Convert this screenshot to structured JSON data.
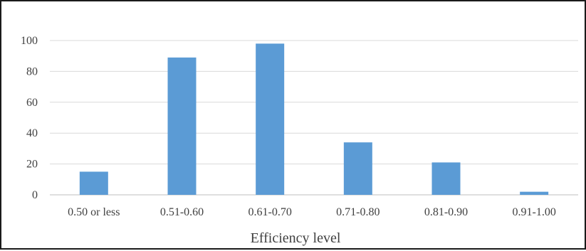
{
  "chart_data": {
    "type": "bar",
    "title": "",
    "xlabel": "Efficiency level",
    "ylabel": "",
    "categories": [
      "0.50 or less",
      "0.51-0.60",
      "0.61-0.70",
      "0.71-0.80",
      "0.81-0.90",
      "0.91-1.00"
    ],
    "values": [
      15,
      89,
      98,
      34,
      21,
      2
    ],
    "ylim": [
      0,
      100
    ],
    "yticks": [
      0,
      20,
      40,
      60,
      80,
      100
    ],
    "grid": true,
    "legend": "none",
    "colors": {
      "bar": "#5b9bd5",
      "grid": "#d9d9d9",
      "axis": "#bfbfbf",
      "text": "#404040",
      "border": "#1a1a1a"
    }
  }
}
